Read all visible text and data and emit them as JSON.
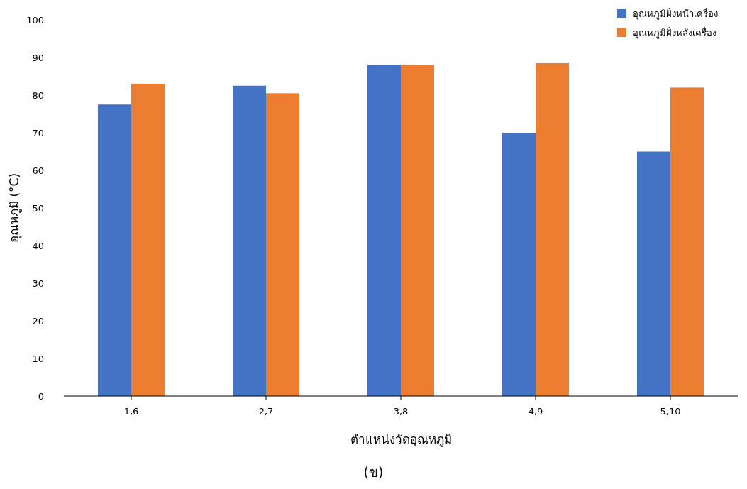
{
  "chart_data": {
    "type": "bar",
    "xlabel": "ตำแหน่งวัดอุณหภูมิ",
    "ylabel": "อุณหภูมิ (°C)",
    "categories": [
      "1,6",
      "2,7",
      "3,8",
      "4,9",
      "5,10"
    ],
    "series": [
      {
        "name": "อุณหภูมิฝั่งหน้าเครื่อง",
        "color": "#4472c4",
        "values": [
          77.5,
          82.5,
          88,
          70,
          65
        ]
      },
      {
        "name": "อุณหภูมิฝั่งหลังเครื่อง",
        "color": "#ed7d31",
        "values": [
          83,
          80.5,
          88,
          88.5,
          82
        ]
      }
    ],
    "ylim": [
      0,
      100
    ],
    "yticks": [
      0,
      10,
      20,
      30,
      40,
      50,
      60,
      70,
      80,
      90,
      100
    ],
    "legend": "top right",
    "annotations": [
      "(ข)"
    ]
  }
}
